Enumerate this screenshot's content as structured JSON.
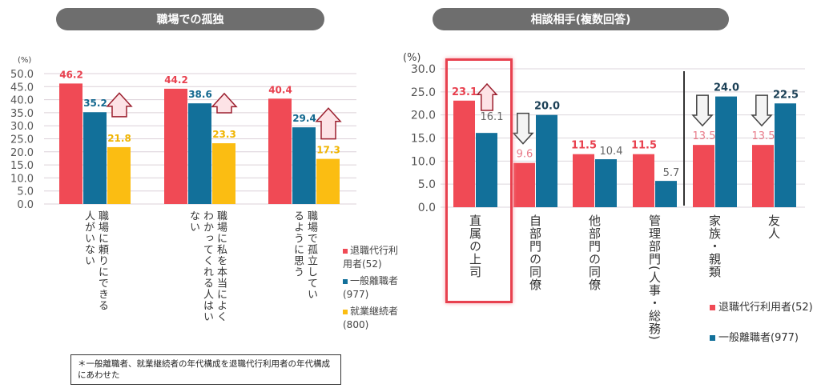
{
  "chart_data": [
    {
      "type": "bar",
      "title": "職場での孤独",
      "ylabel": "(%)",
      "ylim": [
        0,
        50
      ],
      "yticks": [
        "0.0",
        "5.0",
        "10.0",
        "15.0",
        "20.0",
        "25.0",
        "30.0",
        "35.0",
        "40.0",
        "45.0",
        "50.0"
      ],
      "grid": true,
      "categories": [
        "職場に頼りにできる人がいない",
        "職場に私を本当によくわかってくれる人はいない",
        "職場で孤立しているように思う"
      ],
      "series": [
        {
          "name": "退職代行利用者(52)",
          "color": "#f04a55",
          "values": [
            46.2,
            44.2,
            40.4
          ]
        },
        {
          "name": "一般離職者(977)",
          "color": "#12709a",
          "values": [
            35.2,
            38.6,
            29.4
          ]
        },
        {
          "name": "就業継続者(800)",
          "color": "#fbbd12",
          "values": [
            21.8,
            23.3,
            17.3
          ]
        }
      ],
      "annotations": [
        "up-arrow"
      ],
      "legend": "right"
    },
    {
      "type": "bar",
      "title": "相談相手(複数回答)",
      "ylabel": "(%)",
      "ylim": [
        0,
        30
      ],
      "yticks": [
        "0.0",
        "5.0",
        "10.0",
        "15.0",
        "20.0",
        "25.0",
        "30.0"
      ],
      "grid": true,
      "categories": [
        "直属の上司",
        "自部門の同僚",
        "他部門の同僚",
        "管理部門(人事・総務)",
        "家族・親類",
        "友人"
      ],
      "series": [
        {
          "name": "退職代行利用者(52)",
          "color": "#f04a55",
          "values": [
            23.1,
            9.6,
            11.5,
            11.5,
            13.5,
            13.5
          ]
        },
        {
          "name": "一般離職者(977)",
          "color": "#12709a",
          "values": [
            16.1,
            20.0,
            10.4,
            5.7,
            24.0,
            22.5
          ]
        }
      ],
      "highlight": "直属の上司",
      "legend": "bottom-right"
    }
  ],
  "footnote": "＊一般離職者、就業継続者の年代構成を退職代行利用者の年代構成にあわせた"
}
